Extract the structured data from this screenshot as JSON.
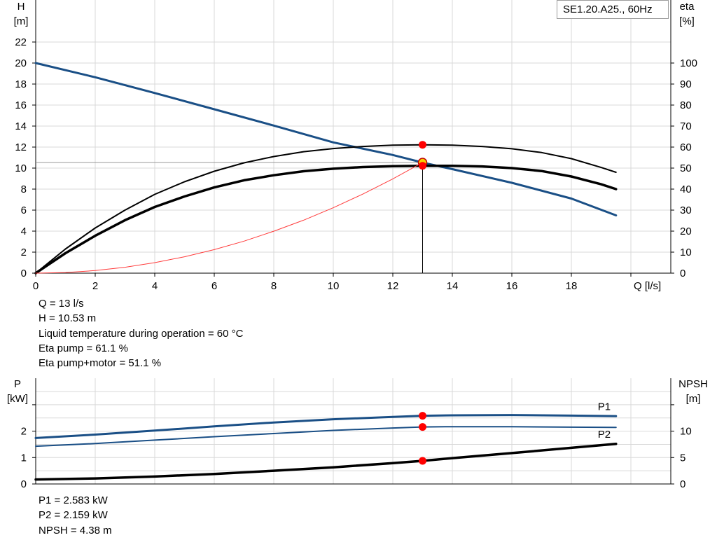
{
  "chart_data": [
    {
      "type": "line",
      "title": "SE1.20.A25., 60Hz",
      "xlabel": "Q [l/s]",
      "ylabel_left": [
        "H",
        "[m]"
      ],
      "ylabel_right": [
        "eta",
        "[%]"
      ],
      "xlim": [
        0,
        20
      ],
      "ylim_left": [
        0,
        24
      ],
      "ylim_right": [
        0,
        120
      ],
      "x_ticks": [
        "0",
        "2",
        "4",
        "6",
        "8",
        "10",
        "12",
        "14",
        "16",
        "18"
      ],
      "y_ticks_left": [
        "0",
        "2",
        "4",
        "6",
        "8",
        "10",
        "12",
        "14",
        "16",
        "18",
        "20",
        "22"
      ],
      "y_ticks_right": [
        "0",
        "10",
        "20",
        "30",
        "40",
        "50",
        "60",
        "70",
        "80",
        "90",
        "100"
      ],
      "grid": true,
      "series": [
        {
          "kind": "H",
          "color": "#1a4f86",
          "axis": "left",
          "x": [
            0,
            2,
            4,
            6,
            8,
            10,
            12,
            13,
            14,
            16,
            18,
            19.5
          ],
          "y": [
            20,
            18.65,
            17.15,
            15.6,
            14.05,
            12.45,
            11.25,
            10.53,
            9.9,
            8.6,
            7.1,
            5.5
          ]
        },
        {
          "kind": "eta pump",
          "color": "#000000",
          "axis": "right",
          "x": [
            0,
            1,
            2,
            3,
            4,
            5,
            6,
            7,
            8,
            9,
            10,
            11,
            12,
            13,
            14,
            15,
            16,
            17,
            18,
            19,
            19.5
          ],
          "y": [
            0,
            11.5,
            21.5,
            30,
            37.5,
            43.5,
            48.5,
            52.5,
            55.5,
            57.8,
            59.3,
            60.3,
            60.9,
            61.1,
            60.9,
            60.3,
            59.2,
            57.4,
            54.5,
            50.3,
            48
          ]
        },
        {
          "kind": "eta pump+motor",
          "color": "#000000",
          "axis": "right",
          "x": [
            0,
            1,
            2,
            3,
            4,
            5,
            6,
            7,
            8,
            9,
            10,
            11,
            12,
            13,
            14,
            15,
            16,
            17,
            18,
            19,
            19.5
          ],
          "y": [
            0,
            9.5,
            17.8,
            25.2,
            31.5,
            36.5,
            40.8,
            44.2,
            46.6,
            48.5,
            49.7,
            50.5,
            50.9,
            51.1,
            51.1,
            50.8,
            50.0,
            48.6,
            46.0,
            42.3,
            40
          ]
        },
        {
          "kind": "system curve",
          "color": "#ff3b3b",
          "axis": "left",
          "x": [
            0,
            1,
            2,
            3,
            4,
            5,
            6,
            7,
            8,
            9,
            10,
            11,
            12,
            13
          ],
          "y": [
            0,
            0.06,
            0.25,
            0.56,
            1.0,
            1.56,
            2.24,
            3.05,
            3.99,
            5.04,
            6.23,
            7.54,
            8.97,
            10.53
          ]
        }
      ],
      "duty_point": {
        "x": 13,
        "h": 10.53,
        "eta_pump": 61.1,
        "eta_total": 51.1
      },
      "annotations": [
        "Q = 13 l/s",
        "H = 10.53 m",
        "Liquid temperature during operation = 60 °C",
        "Eta pump = 61.1 %",
        "Eta pump+motor = 51.1 %"
      ]
    },
    {
      "type": "line",
      "ylabel_left": [
        "P",
        "[kW]"
      ],
      "ylabel_right": [
        "NPSH",
        "[m]"
      ],
      "xlim": [
        0,
        20
      ],
      "ylim_left": [
        0,
        3
      ],
      "ylim_right": [
        0,
        15
      ],
      "y_ticks_left": [
        "0",
        "1",
        "2"
      ],
      "y_ticks_right": [
        "0",
        "5",
        "10"
      ],
      "grid": true,
      "series": [
        {
          "name": "P1",
          "color": "#1a4f86",
          "axis": "left",
          "x": [
            0,
            2,
            4,
            6,
            8,
            10,
            12,
            13,
            14,
            16,
            18,
            19.5
          ],
          "y": [
            1.74,
            1.87,
            2.02,
            2.18,
            2.33,
            2.45,
            2.54,
            2.583,
            2.6,
            2.61,
            2.59,
            2.57
          ]
        },
        {
          "name": "P2",
          "color": "#1a4f86",
          "axis": "left",
          "x": [
            0,
            2,
            4,
            6,
            8,
            10,
            12,
            13,
            14,
            16,
            18,
            19.5
          ],
          "y": [
            1.43,
            1.53,
            1.66,
            1.79,
            1.91,
            2.03,
            2.12,
            2.159,
            2.17,
            2.17,
            2.15,
            2.14
          ]
        },
        {
          "kind": "NPSH",
          "color": "#000000",
          "axis": "right",
          "x": [
            0,
            2,
            4,
            6,
            8,
            10,
            12,
            13,
            14,
            16,
            18,
            19.5
          ],
          "y": [
            0.85,
            1.05,
            1.4,
            1.9,
            2.5,
            3.15,
            3.95,
            4.38,
            4.9,
            5.85,
            6.85,
            7.6
          ]
        }
      ],
      "duty_point": {
        "x": 13,
        "p1": 2.583,
        "p2": 2.159,
        "npsh": 4.38
      },
      "annotations": [
        "P1 = 2.583 kW",
        "P2 = 2.159 kW",
        "NPSH = 4.38 m"
      ]
    }
  ]
}
